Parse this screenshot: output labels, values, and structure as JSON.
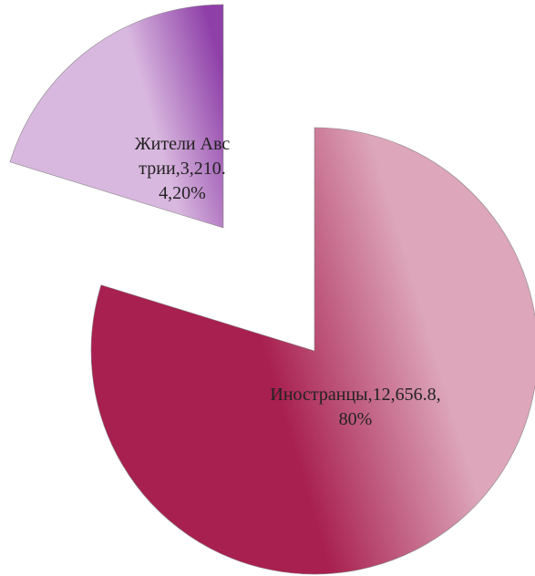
{
  "chart_data": {
    "type": "pie",
    "categories": [
      "Иностранцы",
      "Жители Австрии"
    ],
    "values": [
      12656.8,
      3210.4
    ],
    "value_labels": [
      "Иностранцы,12,656.8,80%",
      "Жители Австрии,3,210.4,20%"
    ],
    "colors": [
      "#dda6ba",
      "#d9b8df"
    ],
    "dark_colors": [
      "#a8204f",
      "#8e3fa8"
    ]
  }
}
